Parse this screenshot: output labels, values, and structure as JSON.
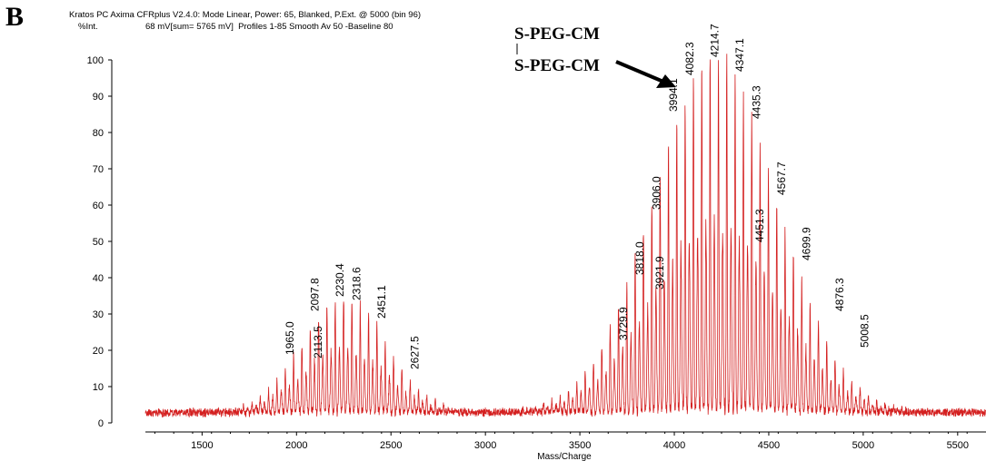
{
  "panel_label": "B",
  "instrument_header": {
    "line1": "Kratos PC Axima CFRplus V2.4.0: Mode Linear, Power: 65, Blanked, P.Ext. @ 5000 (bin 96)",
    "line2_label": "%Int.",
    "line2_info": "68 mV[sum= 5765 mV]  Profiles 1-85 Smooth Av 50 -Baseline 80"
  },
  "annotation": {
    "line1": "S-PEG-CM",
    "line2": "S-PEG-CM"
  },
  "chart_data": {
    "type": "line",
    "title": "",
    "xlabel": "Mass/Charge",
    "ylabel": "%Int.",
    "xlim": [
      1200,
      5650
    ],
    "ylim": [
      0,
      100
    ],
    "x_ticks": [
      1500,
      2000,
      2500,
      3000,
      3500,
      4000,
      4500,
      5000,
      5500
    ],
    "y_ticks": [
      0,
      10,
      20,
      30,
      40,
      50,
      60,
      70,
      80,
      90,
      100
    ],
    "grid": false,
    "line_color": "#d42020",
    "peak_labels": [
      {
        "label": "1965.0",
        "x": 1965.0,
        "y": 18
      },
      {
        "label": "2097.8",
        "x": 2097.8,
        "y": 30
      },
      {
        "label": "2113.5",
        "x": 2113.5,
        "y": 17
      },
      {
        "label": "2230.4",
        "x": 2230.4,
        "y": 34
      },
      {
        "label": "2318.6",
        "x": 2318.6,
        "y": 33
      },
      {
        "label": "2451.1",
        "x": 2451.1,
        "y": 28
      },
      {
        "label": "2627.5",
        "x": 2627.5,
        "y": 14
      },
      {
        "label": "3729.9",
        "x": 3729.9,
        "y": 22
      },
      {
        "label": "3818.0",
        "x": 3818.0,
        "y": 40
      },
      {
        "label": "3921.9",
        "x": 3921.9,
        "y": 36
      },
      {
        "label": "3906.0",
        "x": 3906.0,
        "y": 58
      },
      {
        "label": "3994.1",
        "x": 3994.1,
        "y": 85
      },
      {
        "label": "4082.3",
        "x": 4082.3,
        "y": 95
      },
      {
        "label": "4214.7",
        "x": 4214.7,
        "y": 100
      },
      {
        "label": "4347.1",
        "x": 4347.1,
        "y": 96
      },
      {
        "label": "4435.3",
        "x": 4435.3,
        "y": 83
      },
      {
        "label": "4451.3",
        "x": 4451.3,
        "y": 49
      },
      {
        "label": "4567.7",
        "x": 4567.7,
        "y": 62
      },
      {
        "label": "4699.9",
        "x": 4699.9,
        "y": 44
      },
      {
        "label": "4876.3",
        "x": 4876.3,
        "y": 30
      },
      {
        "label": "5008.5",
        "x": 5008.5,
        "y": 20
      }
    ],
    "envelopes": [
      {
        "center": 2250,
        "width": 220,
        "height": 33,
        "spacing": 44.1
      },
      {
        "center": 4215,
        "width": 330,
        "height": 100,
        "spacing": 44.1
      }
    ]
  }
}
